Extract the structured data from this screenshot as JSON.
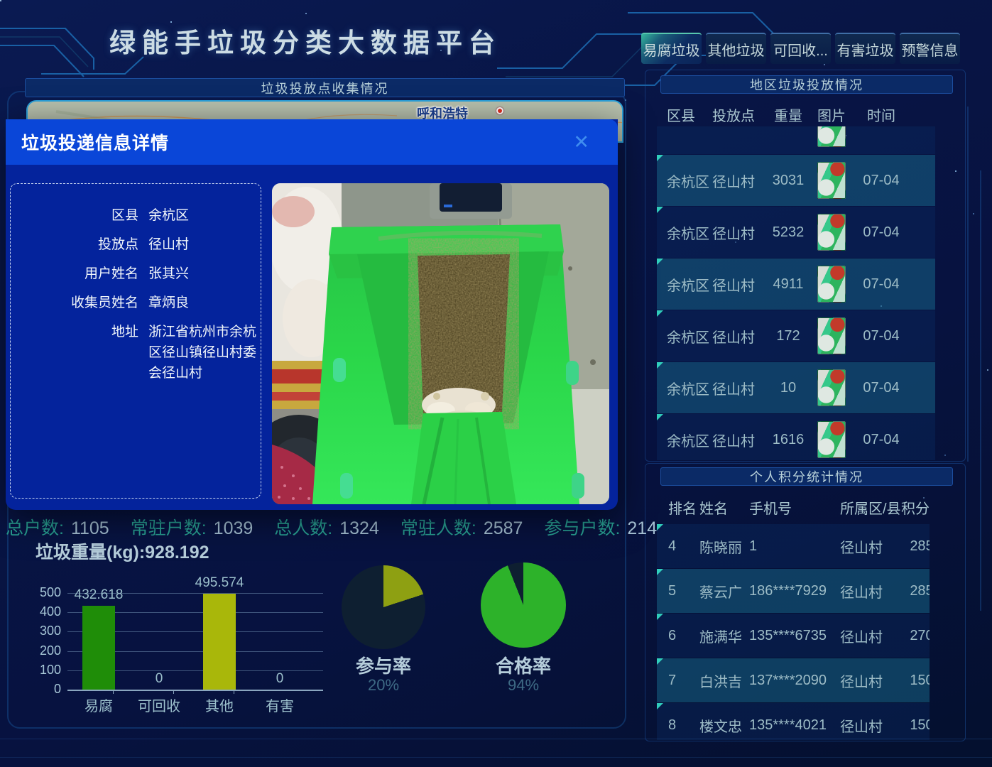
{
  "page": {
    "title": "绿能手垃圾分类大数据平台"
  },
  "left_panel": {
    "header": "垃圾投放点收集情况",
    "map_city": "呼和浩特"
  },
  "tabs": [
    {
      "label": "易腐垃圾",
      "active": true
    },
    {
      "label": "其他垃圾",
      "active": false
    },
    {
      "label": "可回收...",
      "active": false
    },
    {
      "label": "有害垃圾",
      "active": false
    },
    {
      "label": "预警信息",
      "active": false
    }
  ],
  "region_panel": {
    "header": "地区垃圾投放情况",
    "columns": [
      "区县",
      "投放点",
      "重量",
      "图片",
      "时间"
    ],
    "rows": [
      {
        "district": "",
        "point": "",
        "weight": "",
        "date": "",
        "highlight": false,
        "partial": true
      },
      {
        "district": "余杭区",
        "point": "径山村",
        "weight": "3031",
        "date": "07-04",
        "highlight": true,
        "partial": false
      },
      {
        "district": "余杭区",
        "point": "径山村",
        "weight": "5232",
        "date": "07-04",
        "highlight": false,
        "partial": false
      },
      {
        "district": "余杭区",
        "point": "径山村",
        "weight": "4911",
        "date": "07-04",
        "highlight": true,
        "partial": false
      },
      {
        "district": "余杭区",
        "point": "径山村",
        "weight": "172",
        "date": "07-04",
        "highlight": false,
        "partial": false
      },
      {
        "district": "余杭区",
        "point": "径山村",
        "weight": "10",
        "date": "07-04",
        "highlight": true,
        "partial": false
      },
      {
        "district": "余杭区",
        "point": "径山村",
        "weight": "1616",
        "date": "07-04",
        "highlight": false,
        "partial": false
      }
    ]
  },
  "score_panel": {
    "header": "个人积分统计情况",
    "columns": [
      "排名",
      "姓名",
      "手机号",
      "所属区/县",
      "积分"
    ],
    "rows": [
      {
        "rank": "4",
        "name": "陈晓丽",
        "phone": "1",
        "area": "径山村",
        "score": "285",
        "highlight": false
      },
      {
        "rank": "5",
        "name": "蔡云广",
        "phone": "186****7929",
        "area": "径山村",
        "score": "285",
        "highlight": true
      },
      {
        "rank": "6",
        "name": "施满华",
        "phone": "135****6735",
        "area": "径山村",
        "score": "270",
        "highlight": false
      },
      {
        "rank": "7",
        "name": "白洪吉",
        "phone": "137****2090",
        "area": "径山村",
        "score": "150",
        "highlight": true
      },
      {
        "rank": "8",
        "name": "楼文忠",
        "phone": "135****4021",
        "area": "径山村",
        "score": "150",
        "highlight": false
      }
    ]
  },
  "modal": {
    "title": "垃圾投递信息详情",
    "close_icon": "✕",
    "fields": [
      {
        "label": "区县",
        "value": "余杭区"
      },
      {
        "label": "投放点",
        "value": "径山村"
      },
      {
        "label": "用户姓名",
        "value": "张其兴"
      },
      {
        "label": "收集员姓名",
        "value": "章炳良"
      },
      {
        "label": "地址",
        "value": "浙江省杭州市余杭区径山镇径山村委会径山村"
      }
    ]
  },
  "stats": [
    {
      "label": "总户数:",
      "value": "1105"
    },
    {
      "label": "常驻户数:",
      "value": "1039"
    },
    {
      "label": "总人数:",
      "value": "1324"
    },
    {
      "label": "常驻人数:",
      "value": "2587"
    },
    {
      "label": "参与户数:",
      "value": "214"
    }
  ],
  "weight_line": "垃圾重量(kg):928.192",
  "colors": {
    "accent_teal": "#2aa796",
    "highlight_row": "#1a7696",
    "bar_green": "#1f8d08",
    "bar_olive": "#a9b70a",
    "pie_green": "#2db22a",
    "pie_olive": "#8ea012",
    "pie_dark": "#0e1f31",
    "modal_header": "#0a46d8",
    "modal_body": "#04239c"
  },
  "chart_data": [
    {
      "type": "bar",
      "title": "垃圾重量(kg)",
      "categories": [
        "易腐",
        "可回收",
        "其他",
        "有害"
      ],
      "values": [
        432.618,
        0,
        495.574,
        0
      ],
      "value_labels": [
        "432.618",
        "0",
        "495.574",
        "0"
      ],
      "colors": [
        "#1f8d08",
        "#a9b70a",
        "#a9b70a",
        "#a9b70a"
      ],
      "ylim": [
        0,
        500
      ],
      "yticks": [
        0,
        100,
        200,
        300,
        400,
        500
      ],
      "grid": true,
      "legend": "none"
    },
    {
      "type": "pie",
      "title": "参与率",
      "value_label": "20%",
      "slices": [
        {
          "name": "参与率",
          "value": 20,
          "color": "#8ea012"
        },
        {
          "name": "rest",
          "value": 80,
          "color": "#0e1f31"
        }
      ]
    },
    {
      "type": "pie",
      "title": "合格率",
      "value_label": "94%",
      "slices": [
        {
          "name": "合格率",
          "value": 94,
          "color": "#2db22a"
        },
        {
          "name": "rest",
          "value": 6,
          "color": "#0e1f31"
        }
      ]
    }
  ]
}
